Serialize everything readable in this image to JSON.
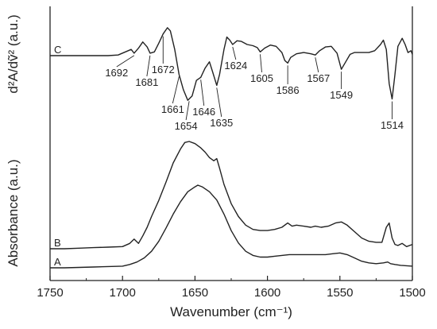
{
  "chart_data": {
    "type": "line",
    "xlabel": "Wavenumber (cm⁻¹)",
    "ylabel_top": "d²A/dṽ² (a.u.)",
    "ylabel_bottom": "Absorbance (a.u.)",
    "xlim": [
      1750,
      1500
    ],
    "x_reversed": true,
    "grid": false,
    "x_ticks": [
      1750,
      1700,
      1650,
      1600,
      1550,
      1500
    ],
    "x_tick_labels": [
      "1750",
      "1700",
      "1650",
      "1600",
      "1550",
      "1500"
    ],
    "y_scale": "arbitrary units (offset traces)",
    "series": [
      {
        "name": "A",
        "color": "#222222",
        "points": [
          [
            1750,
            0.0
          ],
          [
            1740,
            0.0
          ],
          [
            1730,
            0.005
          ],
          [
            1720,
            0.01
          ],
          [
            1710,
            0.015
          ],
          [
            1700,
            0.02
          ],
          [
            1695,
            0.04
          ],
          [
            1690,
            0.07
          ],
          [
            1685,
            0.12
          ],
          [
            1680,
            0.2
          ],
          [
            1675,
            0.32
          ],
          [
            1670,
            0.48
          ],
          [
            1665,
            0.65
          ],
          [
            1660,
            0.8
          ],
          [
            1655,
            0.92
          ],
          [
            1650,
            0.98
          ],
          [
            1648,
            1.0
          ],
          [
            1645,
            0.98
          ],
          [
            1640,
            0.92
          ],
          [
            1635,
            0.82
          ],
          [
            1630,
            0.65
          ],
          [
            1625,
            0.45
          ],
          [
            1620,
            0.3
          ],
          [
            1615,
            0.2
          ],
          [
            1610,
            0.15
          ],
          [
            1605,
            0.13
          ],
          [
            1600,
            0.13
          ],
          [
            1595,
            0.14
          ],
          [
            1590,
            0.15
          ],
          [
            1585,
            0.16
          ],
          [
            1580,
            0.16
          ],
          [
            1575,
            0.16
          ],
          [
            1570,
            0.16
          ],
          [
            1565,
            0.16
          ],
          [
            1560,
            0.16
          ],
          [
            1555,
            0.17
          ],
          [
            1550,
            0.18
          ],
          [
            1545,
            0.16
          ],
          [
            1540,
            0.12
          ],
          [
            1535,
            0.08
          ],
          [
            1530,
            0.06
          ],
          [
            1525,
            0.05
          ],
          [
            1520,
            0.06
          ],
          [
            1517,
            0.07
          ],
          [
            1515,
            0.05
          ],
          [
            1512,
            0.04
          ],
          [
            1508,
            0.03
          ],
          [
            1504,
            0.025
          ],
          [
            1500,
            0.02
          ]
        ]
      },
      {
        "name": "B",
        "color": "#222222",
        "points": [
          [
            1750,
            0.0
          ],
          [
            1740,
            0.0
          ],
          [
            1730,
            0.005
          ],
          [
            1720,
            0.01
          ],
          [
            1710,
            0.015
          ],
          [
            1700,
            0.02
          ],
          [
            1695,
            0.05
          ],
          [
            1692,
            0.09
          ],
          [
            1689,
            0.05
          ],
          [
            1686,
            0.12
          ],
          [
            1683,
            0.2
          ],
          [
            1680,
            0.3
          ],
          [
            1675,
            0.45
          ],
          [
            1670,
            0.62
          ],
          [
            1665,
            0.8
          ],
          [
            1660,
            0.93
          ],
          [
            1657,
            0.99
          ],
          [
            1654,
            1.0
          ],
          [
            1650,
            0.98
          ],
          [
            1646,
            0.94
          ],
          [
            1643,
            0.9
          ],
          [
            1640,
            0.85
          ],
          [
            1637,
            0.82
          ],
          [
            1635,
            0.84
          ],
          [
            1633,
            0.75
          ],
          [
            1630,
            0.6
          ],
          [
            1625,
            0.42
          ],
          [
            1620,
            0.3
          ],
          [
            1615,
            0.22
          ],
          [
            1610,
            0.18
          ],
          [
            1605,
            0.17
          ],
          [
            1600,
            0.17
          ],
          [
            1595,
            0.18
          ],
          [
            1590,
            0.2
          ],
          [
            1586,
            0.24
          ],
          [
            1583,
            0.21
          ],
          [
            1580,
            0.22
          ],
          [
            1575,
            0.21
          ],
          [
            1570,
            0.2
          ],
          [
            1567,
            0.21
          ],
          [
            1563,
            0.2
          ],
          [
            1558,
            0.21
          ],
          [
            1553,
            0.24
          ],
          [
            1549,
            0.25
          ],
          [
            1545,
            0.22
          ],
          [
            1540,
            0.16
          ],
          [
            1535,
            0.1
          ],
          [
            1530,
            0.07
          ],
          [
            1525,
            0.06
          ],
          [
            1521,
            0.06
          ],
          [
            1518,
            0.2
          ],
          [
            1516,
            0.24
          ],
          [
            1514,
            0.1
          ],
          [
            1512,
            0.04
          ],
          [
            1510,
            0.03
          ],
          [
            1507,
            0.05
          ],
          [
            1504,
            0.02
          ],
          [
            1500,
            0.04
          ]
        ]
      },
      {
        "name": "C",
        "color": "#222222",
        "points": [
          [
            1750,
            0.0
          ],
          [
            1740,
            0.0
          ],
          [
            1730,
            0.0
          ],
          [
            1720,
            0.0
          ],
          [
            1710,
            0.0
          ],
          [
            1703,
            0.01
          ],
          [
            1698,
            0.06
          ],
          [
            1694,
            0.1
          ],
          [
            1692,
            0.04
          ],
          [
            1689,
            0.12
          ],
          [
            1686,
            0.22
          ],
          [
            1683,
            0.14
          ],
          [
            1681,
            0.04
          ],
          [
            1678,
            0.06
          ],
          [
            1675,
            0.2
          ],
          [
            1672,
            0.35
          ],
          [
            1669,
            0.45
          ],
          [
            1667,
            0.4
          ],
          [
            1664,
            0.1
          ],
          [
            1661,
            -0.3
          ],
          [
            1658,
            -0.55
          ],
          [
            1655,
            -0.72
          ],
          [
            1652,
            -0.65
          ],
          [
            1649,
            -0.4
          ],
          [
            1646,
            -0.35
          ],
          [
            1643,
            -0.2
          ],
          [
            1640,
            -0.1
          ],
          [
            1638,
            -0.25
          ],
          [
            1635,
            -0.48
          ],
          [
            1633,
            -0.3
          ],
          [
            1630,
            0.1
          ],
          [
            1628,
            0.3
          ],
          [
            1626,
            0.25
          ],
          [
            1624,
            0.18
          ],
          [
            1621,
            0.24
          ],
          [
            1618,
            0.23
          ],
          [
            1614,
            0.18
          ],
          [
            1610,
            0.16
          ],
          [
            1607,
            0.13
          ],
          [
            1605,
            0.06
          ],
          [
            1602,
            0.12
          ],
          [
            1598,
            0.17
          ],
          [
            1594,
            0.15
          ],
          [
            1590,
            0.05
          ],
          [
            1588,
            -0.08
          ],
          [
            1586,
            -0.12
          ],
          [
            1584,
            -0.03
          ],
          [
            1580,
            0.03
          ],
          [
            1575,
            0.05
          ],
          [
            1570,
            0.03
          ],
          [
            1567,
            0.01
          ],
          [
            1564,
            0.08
          ],
          [
            1560,
            0.14
          ],
          [
            1556,
            0.15
          ],
          [
            1552,
            0.04
          ],
          [
            1549,
            -0.22
          ],
          [
            1546,
            -0.1
          ],
          [
            1543,
            0.02
          ],
          [
            1540,
            0.05
          ],
          [
            1535,
            0.05
          ],
          [
            1530,
            0.05
          ],
          [
            1526,
            0.08
          ],
          [
            1522,
            0.18
          ],
          [
            1520,
            0.25
          ],
          [
            1518,
            0.1
          ],
          [
            1516,
            -0.45
          ],
          [
            1514,
            -0.7
          ],
          [
            1512,
            -0.3
          ],
          [
            1510,
            0.15
          ],
          [
            1507,
            0.28
          ],
          [
            1505,
            0.18
          ],
          [
            1503,
            0.05
          ],
          [
            1501,
            0.08
          ],
          [
            1500,
            0.02
          ]
        ]
      }
    ],
    "peak_annotations": [
      {
        "label": "1692",
        "x": 1692,
        "dir": "down"
      },
      {
        "label": "1681",
        "x": 1681,
        "dir": "down"
      },
      {
        "label": "1672",
        "x": 1672,
        "dir": "down"
      },
      {
        "label": "1661",
        "x": 1661,
        "dir": "down"
      },
      {
        "label": "1654",
        "x": 1654,
        "dir": "down"
      },
      {
        "label": "1646",
        "x": 1646,
        "dir": "down"
      },
      {
        "label": "1635",
        "x": 1635,
        "dir": "down"
      },
      {
        "label": "1624",
        "x": 1624,
        "dir": "down"
      },
      {
        "label": "1605",
        "x": 1605,
        "dir": "down"
      },
      {
        "label": "1586",
        "x": 1586,
        "dir": "down"
      },
      {
        "label": "1567",
        "x": 1567,
        "dir": "down"
      },
      {
        "label": "1549",
        "x": 1549,
        "dir": "down"
      },
      {
        "label": "1514",
        "x": 1514,
        "dir": "down"
      }
    ]
  }
}
